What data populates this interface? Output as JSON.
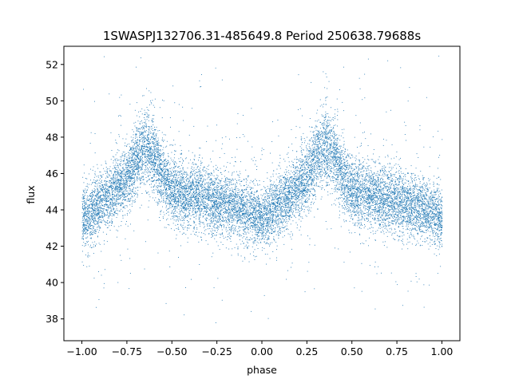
{
  "chart_data": {
    "type": "scatter",
    "title": "1SWASPJ132706.31-485649.8 Period 250638.79688s",
    "xlabel": "phase",
    "ylabel": "flux",
    "xlim": [
      -1.1,
      1.1
    ],
    "ylim": [
      36.8,
      53.0
    ],
    "xticks": [
      -1.0,
      -0.75,
      -0.5,
      -0.25,
      0.0,
      0.25,
      0.5,
      0.75,
      1.0
    ],
    "xtick_labels": [
      "−1.00",
      "−0.75",
      "−0.50",
      "−0.25",
      "0.00",
      "0.25",
      "0.50",
      "0.75",
      "1.00"
    ],
    "yticks": [
      38,
      40,
      42,
      44,
      46,
      48,
      50,
      52
    ],
    "ytick_labels": [
      "38",
      "40",
      "42",
      "44",
      "46",
      "48",
      "50",
      "52"
    ],
    "grid": false,
    "marker_color": "#1f77b4",
    "phase_profile": {
      "phase": [
        0.0,
        0.05,
        0.1,
        0.15,
        0.2,
        0.25,
        0.3,
        0.35,
        0.4,
        0.45,
        0.5,
        0.55,
        0.6,
        0.65,
        0.7,
        0.75,
        0.8,
        0.85,
        0.9,
        0.95,
        1.0
      ],
      "flux": [
        43.5,
        43.9,
        44.4,
        44.8,
        45.3,
        45.8,
        46.8,
        47.6,
        47.0,
        45.8,
        45.0,
        44.9,
        44.8,
        44.8,
        44.6,
        44.5,
        44.3,
        44.2,
        44.0,
        43.8,
        43.5
      ],
      "scatter": [
        0.85,
        0.85,
        0.85,
        0.85,
        0.9,
        0.95,
        1.0,
        1.05,
        1.0,
        0.95,
        0.9,
        0.9,
        0.9,
        0.9,
        0.9,
        0.9,
        0.85,
        0.85,
        0.85,
        0.85,
        0.85
      ]
    },
    "point_count": 14000
  }
}
